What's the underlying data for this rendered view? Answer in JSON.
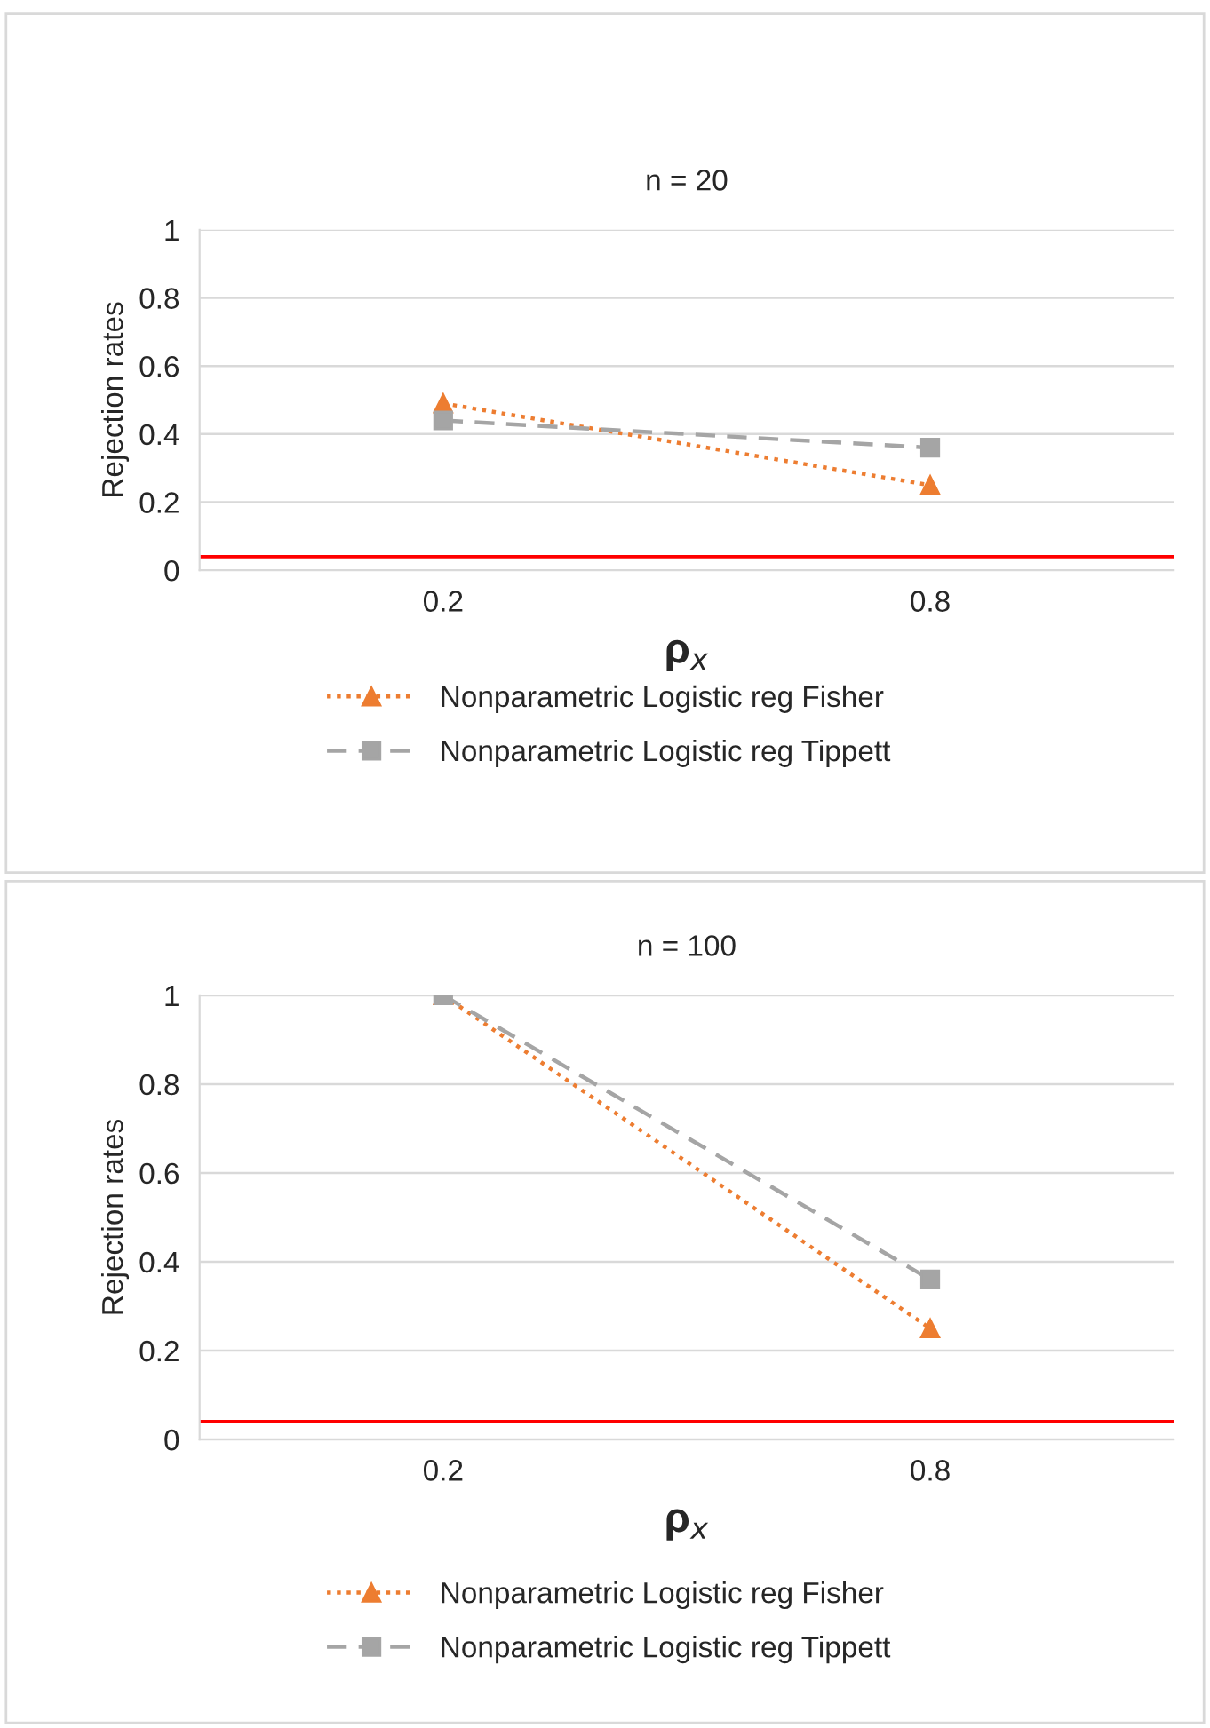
{
  "chart_data": [
    {
      "type": "line",
      "title": "n = 20",
      "categories": [
        "0.2",
        "0.8"
      ],
      "xlabel": "ρ$_{x}$",
      "ylabel": "Rejection rates",
      "ylim": [
        0,
        1
      ],
      "yticks": [
        0,
        0.2,
        0.4,
        0.6,
        0.8,
        1
      ],
      "grid": "y",
      "legend": "bottom",
      "series": [
        {
          "name": "Nonparametric Logistic reg Fisher",
          "color": "#ed7d31",
          "values": [
            0.49,
            0.25
          ],
          "marker": "triangle",
          "line_style": "dotted"
        },
        {
          "name": "Nonparametric Logistic reg Tippett",
          "color": "#a5a5a5",
          "values": [
            0.44,
            0.36
          ],
          "marker": "square",
          "line_style": "dashed"
        }
      ],
      "ref_lines": [
        {
          "axis": "y",
          "value": 0.04,
          "color": "#ff0000",
          "line_style": "solid"
        }
      ]
    },
    {
      "type": "line",
      "title": "n = 100",
      "categories": [
        "0.2",
        "0.8"
      ],
      "xlabel": "ρ$_{x}$",
      "ylabel": "Rejection rates",
      "ylim": [
        0,
        1
      ],
      "yticks": [
        0,
        0.2,
        0.4,
        0.6,
        0.8,
        1
      ],
      "grid": "y",
      "legend": "bottom",
      "series": [
        {
          "name": "Nonparametric Logistic reg Fisher",
          "color": "#ed7d31",
          "values": [
            1,
            0.25
          ],
          "marker": "triangle",
          "line_style": "dotted"
        },
        {
          "name": "Nonparametric Logistic reg Tippett",
          "color": "#a5a5a5",
          "values": [
            1,
            0.36
          ],
          "marker": "square",
          "line_style": "dashed"
        }
      ],
      "ref_lines": [
        {
          "axis": "y",
          "value": 0.04,
          "color": "#ff0000",
          "line_style": "solid"
        }
      ]
    }
  ]
}
